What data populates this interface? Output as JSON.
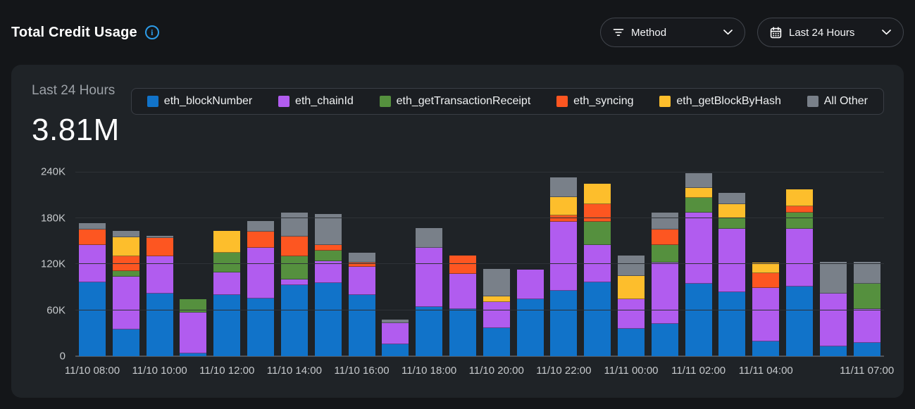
{
  "header": {
    "title": "Total Credit Usage",
    "method_filter": {
      "label": "Method"
    },
    "date_range": {
      "label": "Last 24 Hours"
    }
  },
  "panel": {
    "period_label": "Last 24 Hours",
    "total_value": "3.81M"
  },
  "chart_data": {
    "type": "bar",
    "stacked": true,
    "title": "Total Credit Usage - Last 24 Hours",
    "ylim": [
      0,
      240000
    ],
    "grid": true,
    "legend_position": "top",
    "ytick_labels": [
      "0",
      "60K",
      "120K",
      "180K",
      "240K"
    ],
    "ytick_values": [
      0,
      60000,
      120000,
      180000,
      240000
    ],
    "xtick_labels": [
      "11/10 08:00",
      "11/10 10:00",
      "11/10 12:00",
      "11/10 14:00",
      "11/10 16:00",
      "11/10 18:00",
      "11/10 20:00",
      "11/10 22:00",
      "11/11 00:00",
      "11/11 02:00",
      "11/11 04:00",
      "11/11 07:00"
    ],
    "series": [
      {
        "name": "eth_blockNumber",
        "color": "#1173C9"
      },
      {
        "name": "eth_chainId",
        "color": "#B15CEF"
      },
      {
        "name": "eth_getTransactionReceipt",
        "color": "#55903E"
      },
      {
        "name": "eth_syncing",
        "color": "#FD5621"
      },
      {
        "name": "eth_getBlockByHash",
        "color": "#FDBE2C"
      },
      {
        "name": "All Other",
        "color": "#798089"
      }
    ],
    "bars": [
      {
        "label": "11/10 08:00",
        "tick": true,
        "values": [
          96000,
          49000,
          0,
          20000,
          0,
          8000
        ]
      },
      {
        "label": "11/10 09:00",
        "tick": false,
        "values": [
          35000,
          69000,
          7000,
          19000,
          25000,
          8000
        ]
      },
      {
        "label": "11/10 10:00",
        "tick": true,
        "values": [
          82000,
          48000,
          0,
          24000,
          0,
          3000
        ]
      },
      {
        "label": "11/10 11:00",
        "tick": false,
        "values": [
          4000,
          53000,
          17000,
          0,
          0,
          0
        ]
      },
      {
        "label": "11/10 12:00",
        "tick": true,
        "values": [
          80000,
          29000,
          26000,
          0,
          28000,
          0
        ]
      },
      {
        "label": "11/10 13:00",
        "tick": false,
        "values": [
          75000,
          66000,
          0,
          21000,
          0,
          14000
        ]
      },
      {
        "label": "11/10 14:00",
        "tick": true,
        "values": [
          93000,
          7000,
          30000,
          26000,
          0,
          31000
        ]
      },
      {
        "label": "11/10 15:00",
        "tick": false,
        "values": [
          95000,
          29000,
          13000,
          8000,
          0,
          40000
        ]
      },
      {
        "label": "11/10 16:00",
        "tick": true,
        "values": [
          80000,
          36000,
          0,
          6000,
          0,
          13000
        ]
      },
      {
        "label": "11/10 17:00",
        "tick": false,
        "values": [
          16000,
          27000,
          0,
          0,
          0,
          5000
        ]
      },
      {
        "label": "11/10 18:00",
        "tick": true,
        "values": [
          64000,
          77000,
          0,
          0,
          0,
          26000
        ]
      },
      {
        "label": "11/10 19:00",
        "tick": false,
        "values": [
          61000,
          46000,
          0,
          24000,
          0,
          0
        ]
      },
      {
        "label": "11/10 20:00",
        "tick": true,
        "values": [
          37000,
          34000,
          0,
          0,
          7000,
          36000
        ]
      },
      {
        "label": "11/10 21:00",
        "tick": false,
        "values": [
          74000,
          39000,
          0,
          0,
          0,
          0
        ]
      },
      {
        "label": "11/10 22:00",
        "tick": true,
        "values": [
          85000,
          90000,
          0,
          8000,
          24000,
          26000
        ]
      },
      {
        "label": "11/10 23:00",
        "tick": false,
        "values": [
          96000,
          49000,
          30000,
          23000,
          26000,
          0
        ]
      },
      {
        "label": "11/11 00:00",
        "tick": true,
        "values": [
          36000,
          38000,
          0,
          0,
          30000,
          27000
        ]
      },
      {
        "label": "11/11 01:00",
        "tick": false,
        "values": [
          42000,
          80000,
          23000,
          20000,
          0,
          22000
        ]
      },
      {
        "label": "11/11 02:00",
        "tick": true,
        "values": [
          94000,
          93000,
          19000,
          0,
          13000,
          19000
        ]
      },
      {
        "label": "11/11 03:00",
        "tick": false,
        "values": [
          83000,
          83000,
          14000,
          0,
          18000,
          15000
        ]
      },
      {
        "label": "11/11 04:00",
        "tick": true,
        "values": [
          19000,
          70000,
          0,
          19000,
          14000,
          0
        ]
      },
      {
        "label": "11/11 05:00",
        "tick": false,
        "values": [
          91000,
          75000,
          21000,
          8000,
          22000,
          0
        ]
      },
      {
        "label": "11/11 06:00",
        "tick": false,
        "values": [
          13000,
          69000,
          0,
          0,
          0,
          41000
        ]
      },
      {
        "label": "11/11 07:00",
        "tick": true,
        "values": [
          17000,
          44000,
          33000,
          0,
          0,
          29000
        ]
      }
    ]
  }
}
